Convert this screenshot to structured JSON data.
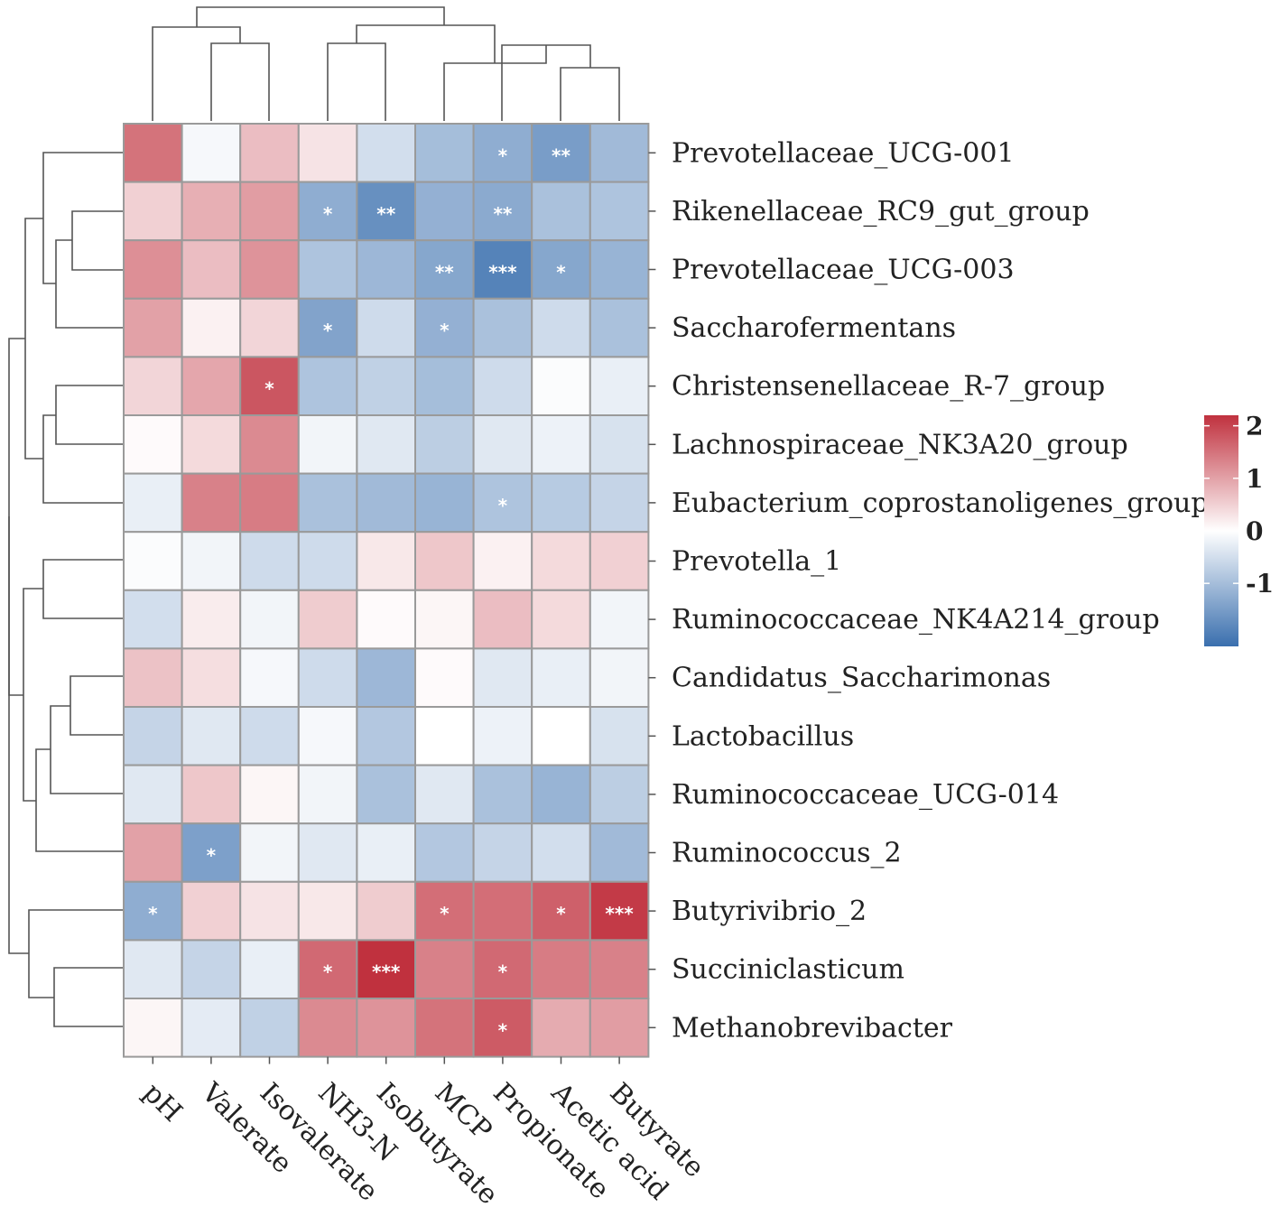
{
  "chart_data": {
    "type": "heatmap",
    "title": "",
    "columns": [
      "pH",
      "Valerate",
      "Isovalerate",
      "NH3-N",
      "Isobutyrate",
      "MCP",
      "Propionate",
      "Acetic acid",
      "Butyrate"
    ],
    "rows": [
      "Prevotellaceae_UCG-001",
      "Rikenellaceae_RC9_gut_group",
      "Prevotellaceae_UCG-003",
      "Saccharofermentans",
      "Christensenellaceae_R-7_group",
      "Lachnospiraceae_NK3A20_group",
      "Eubacterium_coprostanoligenes_group",
      "Prevotella_1",
      "Ruminococcaceae_NK4A214_group",
      "Candidatus_Saccharimonas",
      "Lactobacillus",
      "Ruminococcaceae_UCG-014",
      "Ruminococcus_2",
      "Butyrivibrio_2",
      "Succiniclasticum",
      "Methanobrevibacter"
    ],
    "values": [
      [
        1.5,
        -0.1,
        0.7,
        0.3,
        -0.5,
        -1.0,
        -1.25,
        -1.5,
        -1.05
      ],
      [
        0.5,
        0.85,
        1.05,
        -1.25,
        -1.7,
        -1.2,
        -1.3,
        -0.95,
        -0.9
      ],
      [
        1.2,
        0.7,
        1.15,
        -0.9,
        -1.1,
        -1.35,
        -1.9,
        -1.35,
        -1.15
      ],
      [
        1.0,
        0.15,
        0.45,
        -1.4,
        -0.55,
        -1.2,
        -0.95,
        -0.55,
        -0.95
      ],
      [
        0.45,
        0.95,
        1.8,
        -0.9,
        -0.7,
        -1.0,
        -0.55,
        -0.05,
        -0.25
      ],
      [
        0.05,
        0.4,
        1.25,
        -0.15,
        -0.35,
        -0.75,
        -0.35,
        -0.2,
        -0.45
      ],
      [
        -0.25,
        1.35,
        1.4,
        -0.95,
        -1.05,
        -1.15,
        -0.9,
        -0.8,
        -0.65
      ],
      [
        -0.05,
        -0.15,
        -0.55,
        -0.55,
        0.25,
        0.6,
        0.15,
        0.4,
        0.5
      ],
      [
        -0.5,
        0.2,
        -0.15,
        0.55,
        0.05,
        0.1,
        0.7,
        0.4,
        -0.15
      ],
      [
        0.65,
        0.35,
        -0.1,
        -0.55,
        -1.1,
        0.05,
        -0.35,
        -0.25,
        -0.15
      ],
      [
        -0.65,
        -0.35,
        -0.55,
        -0.1,
        -0.85,
        0.0,
        -0.2,
        0.0,
        -0.45
      ],
      [
        -0.35,
        0.6,
        0.1,
        -0.15,
        -0.95,
        -0.35,
        -0.95,
        -1.15,
        -0.75
      ],
      [
        1.0,
        -1.45,
        -0.15,
        -0.35,
        -0.25,
        -0.85,
        -0.65,
        -0.5,
        -1.05
      ],
      [
        -1.25,
        0.5,
        0.3,
        0.25,
        0.55,
        1.55,
        1.55,
        1.7,
        2.1
      ],
      [
        -0.35,
        -0.65,
        -0.25,
        1.6,
        2.2,
        1.35,
        1.6,
        1.4,
        1.35
      ],
      [
        0.1,
        -0.3,
        -0.7,
        1.25,
        1.15,
        1.5,
        1.75,
        0.9,
        1.05
      ]
    ],
    "significance": [
      [
        "",
        "",
        "",
        "",
        "",
        "",
        "*",
        "**",
        ""
      ],
      [
        "",
        "",
        "",
        "*",
        "**",
        "",
        "**",
        "",
        ""
      ],
      [
        "",
        "",
        "",
        "",
        "",
        "**",
        "***",
        "*",
        ""
      ],
      [
        "",
        "",
        "",
        "*",
        "",
        "*",
        "",
        "",
        ""
      ],
      [
        "",
        "",
        "*",
        "",
        "",
        "",
        "",
        "",
        ""
      ],
      [
        "",
        "",
        "",
        "",
        "",
        "",
        "",
        "",
        ""
      ],
      [
        "",
        "",
        "",
        "",
        "",
        "",
        "*",
        "",
        ""
      ],
      [
        "",
        "",
        "",
        "",
        "",
        "",
        "",
        "",
        ""
      ],
      [
        "",
        "",
        "",
        "",
        "",
        "",
        "",
        "",
        ""
      ],
      [
        "",
        "",
        "",
        "",
        "",
        "",
        "",
        "",
        ""
      ],
      [
        "",
        "",
        "",
        "",
        "",
        "",
        "",
        "",
        ""
      ],
      [
        "",
        "",
        "",
        "",
        "",
        "",
        "",
        "",
        ""
      ],
      [
        "",
        "*",
        "",
        "",
        "",
        "",
        "",
        "",
        ""
      ],
      [
        "*",
        "",
        "",
        "",
        "",
        "*",
        "",
        "*",
        "***"
      ],
      [
        "",
        "",
        "",
        "*",
        "***",
        "",
        "*",
        "",
        ""
      ],
      [
        "",
        "",
        "",
        "",
        "",
        "",
        "*",
        "",
        ""
      ]
    ],
    "color_scale": {
      "min": -2.2,
      "max": 2.2,
      "low_color": "#3a6fae",
      "mid_color": "#ffffff",
      "high_color": "#c0313e",
      "ticks": [
        2,
        1,
        0,
        -1
      ],
      "tick_labels": [
        "2",
        "1",
        "0",
        "-1"
      ]
    },
    "legend_position": "right",
    "dendrograms": [
      "top",
      "left"
    ]
  }
}
